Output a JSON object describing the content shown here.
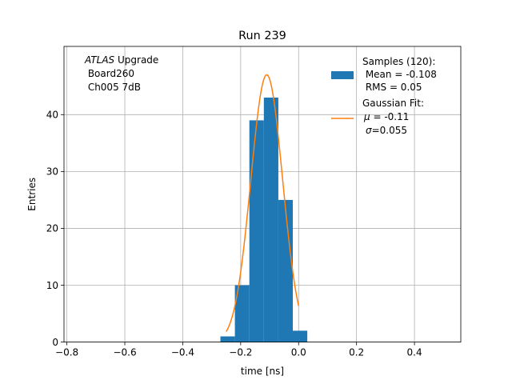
{
  "chart_data": {
    "type": "bar",
    "title": "Run 239",
    "xlabel": "time [ns]",
    "ylabel": "Entries",
    "xlim": [
      -0.81,
      0.56
    ],
    "ylim": [
      0,
      52
    ],
    "grid": true,
    "xticks": [
      -0.8,
      -0.6,
      -0.4,
      -0.2,
      0.0,
      0.2,
      0.4
    ],
    "xtick_labels": [
      "−0.8",
      "−0.6",
      "−0.4",
      "−0.2",
      "0.0",
      "0.2",
      "0.4"
    ],
    "yticks": [
      0,
      10,
      20,
      30,
      40
    ],
    "ytick_labels": [
      "0",
      "10",
      "20",
      "30",
      "40"
    ],
    "histogram": {
      "bin_width": 0.05,
      "bin_left_edges": [
        -0.27,
        -0.22,
        -0.17,
        -0.12,
        -0.07,
        -0.02
      ],
      "counts": [
        1,
        10,
        39,
        43,
        25,
        2
      ],
      "color": "#1f77b4"
    },
    "gaussian_fit": {
      "amplitude": 47,
      "mu": -0.11,
      "sigma": 0.055,
      "x_range": [
        -0.25,
        0.0
      ],
      "color": "#ff7f0e"
    },
    "annotation": {
      "line1_italic": "ATLAS",
      "line1_rest": " Upgrade",
      "line2": " Board260",
      "line3": " Ch005 7dB"
    },
    "legend": {
      "placement": "top-right",
      "samples_lines": [
        "Samples (120):",
        " Mean = -0.108",
        " RMS = 0.05"
      ],
      "fit_line1": "Gaussian Fit:",
      "fit_mu_symbol": "μ",
      "fit_mu_value": " = -0.11",
      "fit_sigma_symbol": "σ",
      "fit_sigma_value": "=0.055"
    }
  }
}
